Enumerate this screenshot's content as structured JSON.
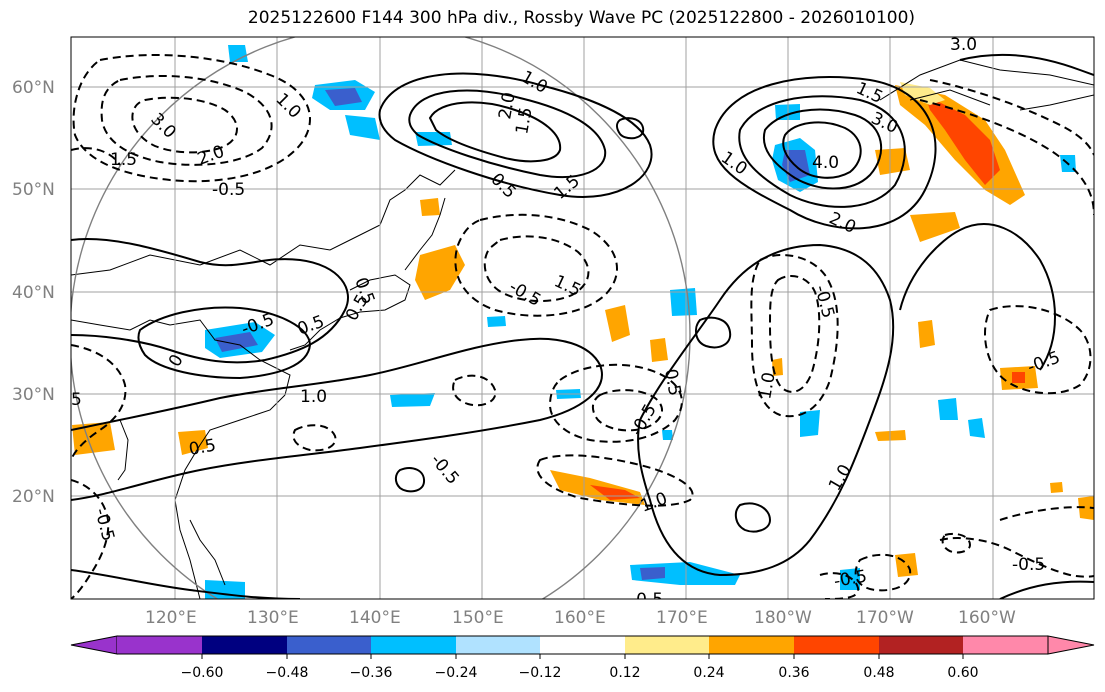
{
  "title": "2025122600 F144 300 hPa div., Rossby Wave PC (2025122800 - 2026010100)",
  "lat_labels": [
    "60°N",
    "50°N",
    "40°N",
    "30°N",
    "20°N"
  ],
  "lon_labels": [
    "120°E",
    "130°E",
    "140°E",
    "150°E",
    "160°E",
    "170°E",
    "180°W",
    "170°W",
    "160°W"
  ],
  "colorbar": {
    "ticks": [
      "−0.60",
      "−0.48",
      "−0.36",
      "−0.24",
      "−0.12",
      "0.12",
      "0.24",
      "0.36",
      "0.48",
      "0.60"
    ],
    "colors": [
      "#9933cc",
      "#000080",
      "#3a5fcd",
      "#00bfff",
      "#b0e2ff",
      "#ffffff",
      "#ffec8b",
      "#ffa500",
      "#ff4500",
      "#b22222",
      "#ff88aa"
    ]
  },
  "contour_labels": [
    "1.0",
    "3.0",
    "1.5",
    "2.0",
    "-0.5",
    "2.0",
    "1.5",
    "1.0",
    "0.5",
    "1.5",
    "-0.5",
    "1.5",
    "-0.5",
    "0.5",
    "0.5",
    "0.5",
    "0",
    "1.0",
    "-0.5",
    "1.5",
    "3.0",
    "4.0",
    "1.0",
    "2.0",
    "-0.5",
    "1.0",
    "1.0",
    "-0.5",
    "0.5",
    "-0.5",
    "1.0",
    "-0.5",
    "-0.5",
    "-0.5",
    "3.0",
    "5",
    "0.5",
    "-0.5"
  ]
}
